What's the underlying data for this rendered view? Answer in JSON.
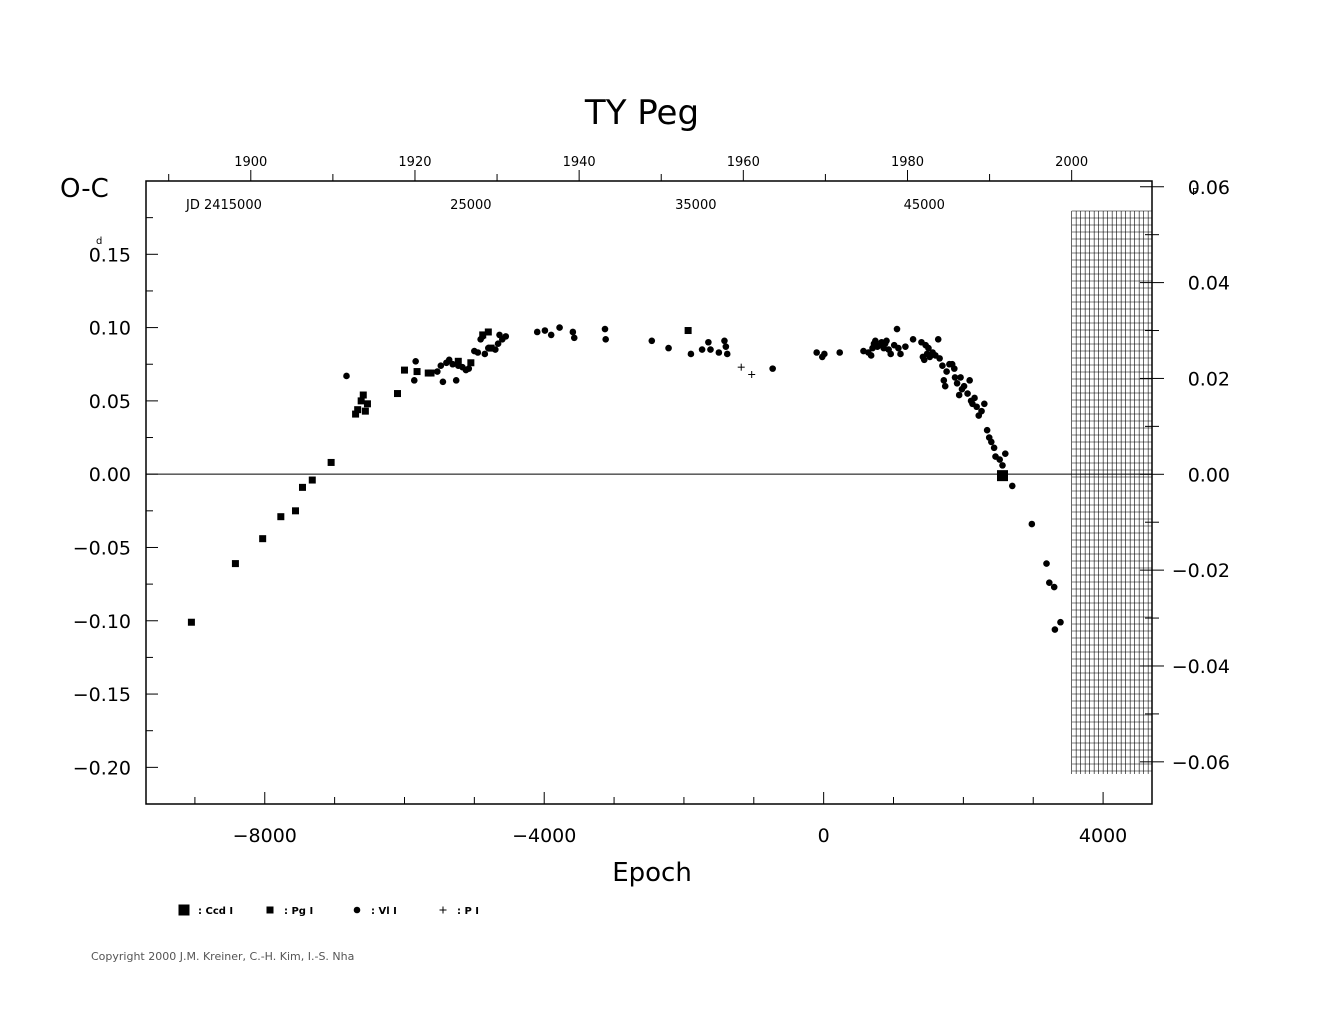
{
  "chart_data": {
    "type": "scatter",
    "title": "TY  Peg",
    "xlabel": "Epoch",
    "ylabel": "O-C",
    "ylabel_unit": "d",
    "y2_unit": "P",
    "xlim": [
      -9700,
      4700
    ],
    "ylim": [
      -0.225,
      0.2
    ],
    "y2lim": [
      -0.0688,
      0.0612
    ],
    "x_ticks": [
      -8000,
      -4000,
      0,
      4000
    ],
    "x_tick_labels": [
      "−8000",
      "−4000",
      "0",
      "4000"
    ],
    "y_ticks": [
      0.15,
      0.1,
      0.05,
      0.0,
      -0.05,
      -0.1,
      -0.15,
      -0.2
    ],
    "y_tick_labels": [
      "0.15",
      "0.10",
      "0.05",
      "0.00",
      "−0.05",
      "−0.10",
      "−0.15",
      "−0.20"
    ],
    "y2_ticks": [
      0.06,
      0.04,
      0.02,
      0.0,
      -0.02,
      -0.04,
      -0.06
    ],
    "y2_tick_labels": [
      "0.06",
      "0.04",
      "0.02",
      "0.00",
      "−0.02",
      "−0.04",
      "−0.06"
    ],
    "year_axis": {
      "labels": [
        "1900",
        "1920",
        "1940",
        "1960",
        "1980",
        "2000"
      ],
      "epochs": [
        -8200,
        -5850,
        -3500,
        -1150,
        1200,
        3550
      ]
    },
    "jd_axis": {
      "prefix": "JD  2415000",
      "labels": [
        "25000",
        "35000",
        "45000"
      ],
      "epochs": [
        -5050,
        -1830,
        1440
      ]
    },
    "grid": false,
    "zero_line": true,
    "future_hatch_start": 3550,
    "legend_position": "bottom-left",
    "series": [
      {
        "name": ": Ccd  I",
        "marker": "square-large",
        "points": [
          [
            2560,
            -0.001
          ]
        ]
      },
      {
        "name": ": Pg  I",
        "marker": "square",
        "points": [
          [
            -9050,
            -0.101
          ],
          [
            -8420,
            -0.061
          ],
          [
            -8030,
            -0.044
          ],
          [
            -7770,
            -0.029
          ],
          [
            -7560,
            -0.025
          ],
          [
            -7460,
            -0.009
          ],
          [
            -7320,
            -0.004
          ],
          [
            -7050,
            0.008
          ],
          [
            -6700,
            0.041
          ],
          [
            -6670,
            0.044
          ],
          [
            -6620,
            0.05
          ],
          [
            -6590,
            0.054
          ],
          [
            -6560,
            0.043
          ],
          [
            -6530,
            0.048
          ],
          [
            -6100,
            0.055
          ],
          [
            -6000,
            0.071
          ],
          [
            -5820,
            0.07
          ],
          [
            -5660,
            0.069
          ],
          [
            -5620,
            0.069
          ],
          [
            -5230,
            0.077
          ],
          [
            -5050,
            0.076
          ],
          [
            -4880,
            0.095
          ],
          [
            -4800,
            0.097
          ],
          [
            -4760,
            0.086
          ],
          [
            -1940,
            0.098
          ]
        ]
      },
      {
        "name": ": Vl  I",
        "marker": "dot",
        "points": [
          [
            -6830,
            0.067
          ],
          [
            -5860,
            0.064
          ],
          [
            -5840,
            0.077
          ],
          [
            -5530,
            0.07
          ],
          [
            -5480,
            0.074
          ],
          [
            -5450,
            0.063
          ],
          [
            -5400,
            0.076
          ],
          [
            -5360,
            0.078
          ],
          [
            -5310,
            0.075
          ],
          [
            -5260,
            0.064
          ],
          [
            -5230,
            0.074
          ],
          [
            -5170,
            0.073
          ],
          [
            -5120,
            0.071
          ],
          [
            -5080,
            0.072
          ],
          [
            -5000,
            0.084
          ],
          [
            -4950,
            0.083
          ],
          [
            -4910,
            0.092
          ],
          [
            -4880,
            0.094
          ],
          [
            -4850,
            0.082
          ],
          [
            -4800,
            0.086
          ],
          [
            -4700,
            0.085
          ],
          [
            -4660,
            0.089
          ],
          [
            -4640,
            0.095
          ],
          [
            -4600,
            0.092
          ],
          [
            -4550,
            0.094
          ],
          [
            -4100,
            0.097
          ],
          [
            -3990,
            0.098
          ],
          [
            -3900,
            0.095
          ],
          [
            -3780,
            0.1
          ],
          [
            -3590,
            0.097
          ],
          [
            -3570,
            0.093
          ],
          [
            -3130,
            0.099
          ],
          [
            -3120,
            0.092
          ],
          [
            -2460,
            0.091
          ],
          [
            -2220,
            0.086
          ],
          [
            -1900,
            0.082
          ],
          [
            -1740,
            0.085
          ],
          [
            -1650,
            0.09
          ],
          [
            -1620,
            0.085
          ],
          [
            -1500,
            0.083
          ],
          [
            -1420,
            0.091
          ],
          [
            -1400,
            0.087
          ],
          [
            -1380,
            0.082
          ],
          [
            -730,
            0.072
          ],
          [
            -100,
            0.083
          ],
          [
            -20,
            0.08
          ],
          [
            10,
            0.082
          ],
          [
            230,
            0.083
          ],
          [
            570,
            0.084
          ],
          [
            640,
            0.083
          ],
          [
            680,
            0.081
          ],
          [
            700,
            0.086
          ],
          [
            720,
            0.089
          ],
          [
            740,
            0.091
          ],
          [
            770,
            0.087
          ],
          [
            800,
            0.088
          ],
          [
            830,
            0.09
          ],
          [
            860,
            0.086
          ],
          [
            880,
            0.089
          ],
          [
            900,
            0.091
          ],
          [
            930,
            0.085
          ],
          [
            960,
            0.082
          ],
          [
            1010,
            0.088
          ],
          [
            1050,
            0.099
          ],
          [
            1070,
            0.086
          ],
          [
            1100,
            0.082
          ],
          [
            1170,
            0.087
          ],
          [
            1280,
            0.092
          ],
          [
            1400,
            0.09
          ],
          [
            1420,
            0.08
          ],
          [
            1440,
            0.078
          ],
          [
            1460,
            0.088
          ],
          [
            1480,
            0.082
          ],
          [
            1500,
            0.086
          ],
          [
            1520,
            0.08
          ],
          [
            1560,
            0.083
          ],
          [
            1600,
            0.081
          ],
          [
            1640,
            0.092
          ],
          [
            1660,
            0.079
          ],
          [
            1700,
            0.074
          ],
          [
            1720,
            0.064
          ],
          [
            1740,
            0.06
          ],
          [
            1760,
            0.07
          ],
          [
            1800,
            0.075
          ],
          [
            1840,
            0.075
          ],
          [
            1870,
            0.072
          ],
          [
            1880,
            0.066
          ],
          [
            1910,
            0.062
          ],
          [
            1940,
            0.054
          ],
          [
            1960,
            0.066
          ],
          [
            1980,
            0.058
          ],
          [
            2010,
            0.06
          ],
          [
            2060,
            0.055
          ],
          [
            2090,
            0.064
          ],
          [
            2110,
            0.05
          ],
          [
            2130,
            0.048
          ],
          [
            2160,
            0.052
          ],
          [
            2190,
            0.046
          ],
          [
            2220,
            0.04
          ],
          [
            2260,
            0.043
          ],
          [
            2300,
            0.048
          ],
          [
            2340,
            0.03
          ],
          [
            2370,
            0.025
          ],
          [
            2400,
            0.022
          ],
          [
            2440,
            0.018
          ],
          [
            2460,
            0.012
          ],
          [
            2520,
            0.01
          ],
          [
            2560,
            0.006
          ],
          [
            2600,
            0.014
          ],
          [
            2700,
            -0.008
          ],
          [
            2980,
            -0.034
          ],
          [
            3190,
            -0.061
          ],
          [
            3230,
            -0.074
          ],
          [
            3300,
            -0.077
          ],
          [
            3310,
            -0.106
          ],
          [
            3390,
            -0.101
          ]
        ]
      },
      {
        "name": ": P  I",
        "marker": "plus",
        "points": [
          [
            -1180,
            0.073
          ],
          [
            -1030,
            0.068
          ]
        ]
      }
    ]
  },
  "copyright": "Copyright 2000 J.M. Kreiner, C.-H. Kim, I.-S. Nha"
}
